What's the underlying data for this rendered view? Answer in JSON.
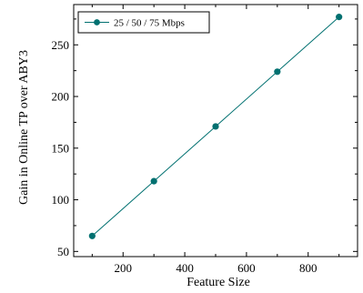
{
  "chart_data": {
    "type": "line",
    "title": "",
    "xlabel": "Feature Size",
    "ylabel": "Gain in Online TP over ABY3",
    "xlim": [
      40,
      960
    ],
    "ylim": [
      45,
      289
    ],
    "xticks": [
      200,
      400,
      600,
      800
    ],
    "yticks": [
      50,
      100,
      150,
      200,
      250
    ],
    "grid": false,
    "legend_position": "top-left",
    "series": [
      {
        "name": "25 / 50 / 75 Mbps",
        "color": "#007070",
        "marker": "circle",
        "x": [
          100,
          300,
          500,
          700,
          900
        ],
        "y": [
          65,
          118,
          171,
          224,
          277
        ]
      }
    ]
  }
}
